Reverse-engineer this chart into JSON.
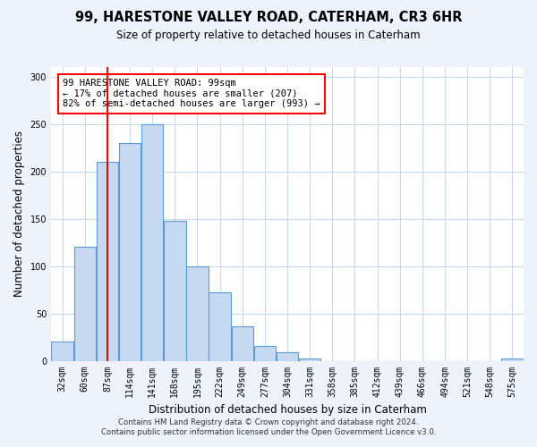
{
  "title": "99, HARESTONE VALLEY ROAD, CATERHAM, CR3 6HR",
  "subtitle": "Size of property relative to detached houses in Caterham",
  "xlabel": "Distribution of detached houses by size in Caterham",
  "ylabel": "Number of detached properties",
  "bar_labels": [
    "32sqm",
    "60sqm",
    "87sqm",
    "114sqm",
    "141sqm",
    "168sqm",
    "195sqm",
    "222sqm",
    "249sqm",
    "277sqm",
    "304sqm",
    "331sqm",
    "358sqm",
    "385sqm",
    "412sqm",
    "439sqm",
    "466sqm",
    "494sqm",
    "521sqm",
    "548sqm",
    "575sqm"
  ],
  "bar_values": [
    20,
    120,
    210,
    230,
    250,
    148,
    100,
    72,
    36,
    16,
    9,
    2,
    0,
    0,
    0,
    0,
    0,
    0,
    0,
    0,
    2
  ],
  "bar_color": "#c6d9f0",
  "bar_edge_color": "#5b9bd5",
  "vline_x": 2,
  "vline_color": "red",
  "ylim": [
    0,
    310
  ],
  "yticks": [
    0,
    50,
    100,
    150,
    200,
    250,
    300
  ],
  "annotation_title": "99 HARESTONE VALLEY ROAD: 99sqm",
  "annotation_line1": "← 17% of detached houses are smaller (207)",
  "annotation_line2": "82% of semi-detached houses are larger (993) →",
  "footer1": "Contains HM Land Registry data © Crown copyright and database right 2024.",
  "footer2": "Contains public sector information licensed under the Open Government Licence v3.0.",
  "bg_color": "#eef2fb",
  "plot_bg_color": "#ffffff",
  "grid_color": "#c8d8ee"
}
